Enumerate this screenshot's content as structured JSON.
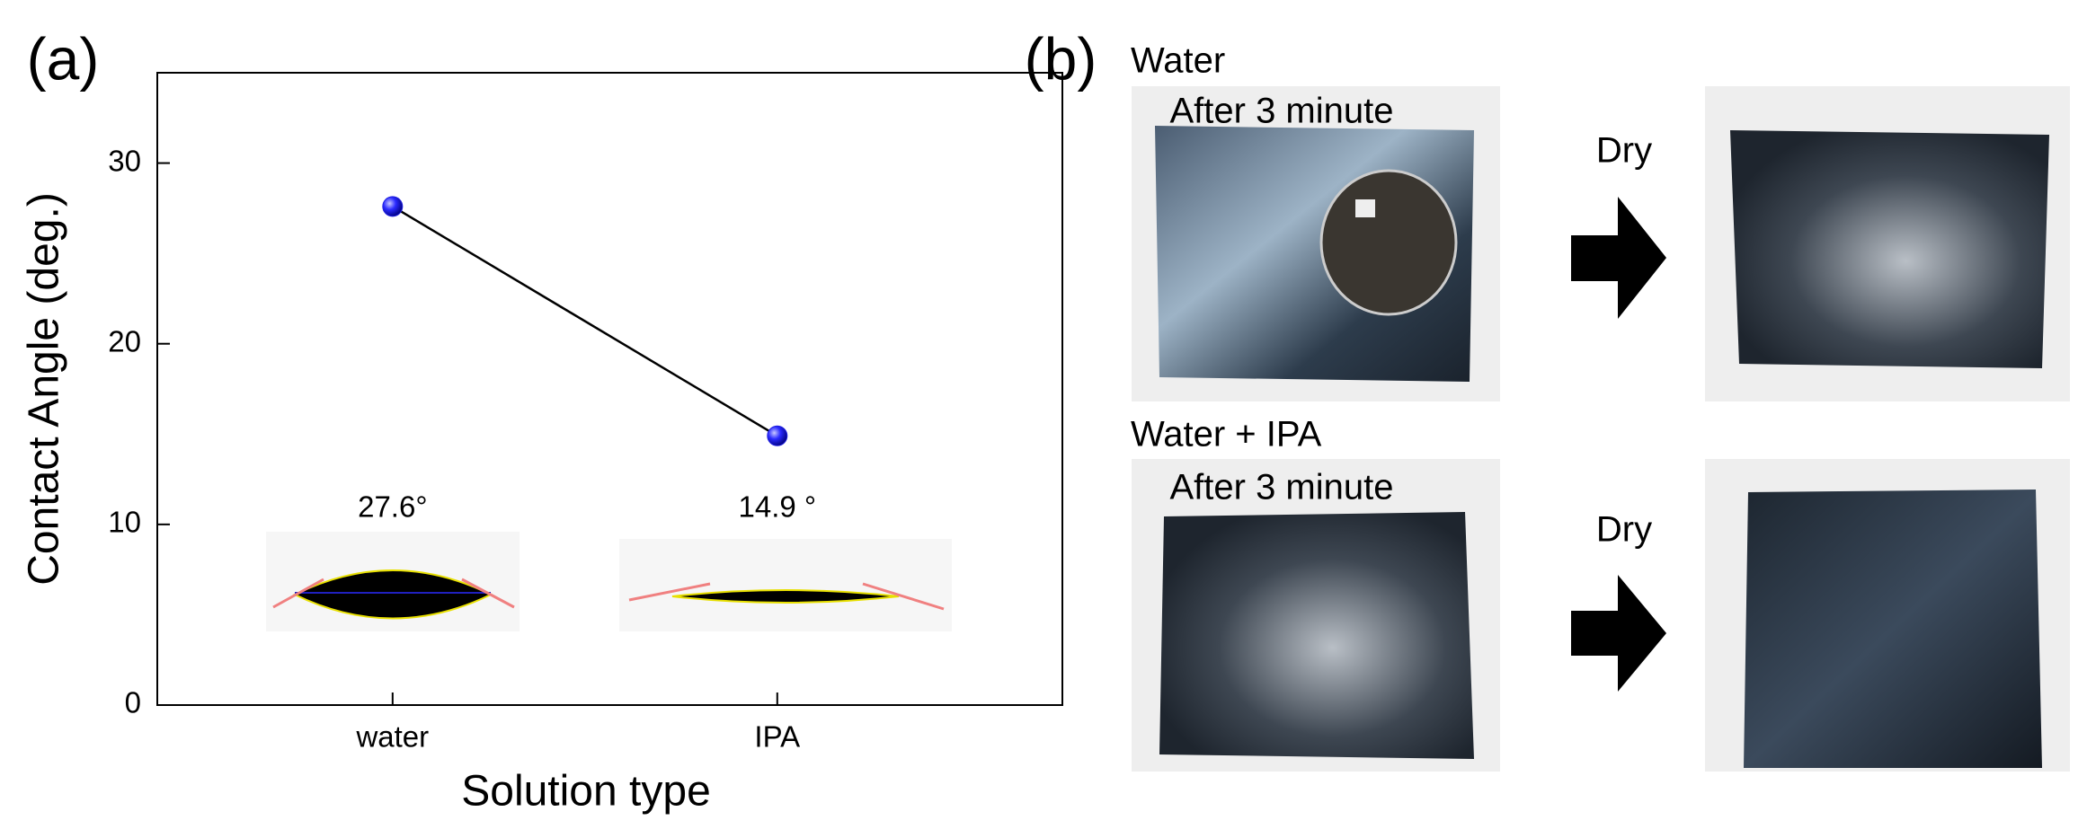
{
  "panel_labels": [
    "(a)",
    "(b)"
  ],
  "chart_data": {
    "type": "line",
    "ylabel": "Contact Angle (deg.)",
    "xlabel": "Solution type",
    "categories": [
      "water",
      "IPA"
    ],
    "values": [
      27.6,
      14.9
    ],
    "value_labels": [
      "27.6°",
      "14.9 °"
    ],
    "color": "#1f1fe0",
    "line_color": "#000000",
    "ylim": [
      0,
      35
    ],
    "yticks": [
      0,
      10,
      20,
      30
    ]
  },
  "photos": {
    "top": {
      "title": "Water",
      "caption": "After 3 minute",
      "arrow": "Dry"
    },
    "bottom": {
      "title": "Water + IPA",
      "caption": "After 3 minute",
      "arrow": "Dry"
    }
  }
}
